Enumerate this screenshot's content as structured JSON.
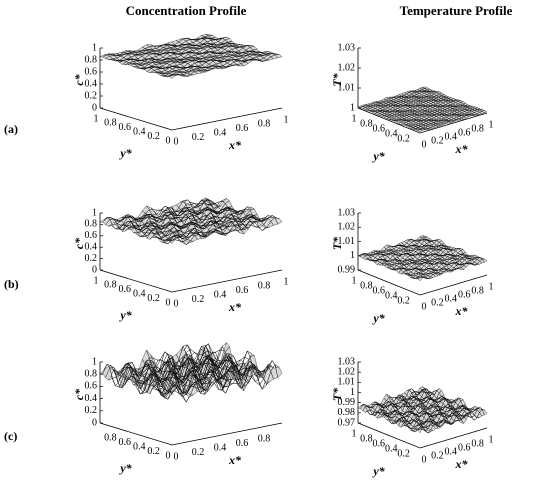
{
  "column_titles": [
    "Concentration Profile",
    "Temperature Profile"
  ],
  "rows": [
    {
      "label": "(a)",
      "panels": [
        {
          "zlabel": "c*",
          "ylabel": "y*",
          "xlabel": "x*",
          "zticks": [
            "0",
            "0.2",
            "0.4",
            "0.6",
            "0.8",
            "1"
          ],
          "yticks": [
            "0",
            "0.2",
            "0.4",
            "0.6",
            "0.8",
            "1"
          ],
          "xticks": [
            "0",
            "0.2",
            "0.4",
            "0.6",
            "0.8",
            "1"
          ]
        },
        {
          "zlabel": "T*",
          "ylabel": "y*",
          "xlabel": "x*",
          "zticks": [
            "1",
            "1.01",
            "1.02",
            "1.03"
          ],
          "yticks": [
            "0.2",
            "0.4",
            "0.6",
            "0.8",
            "1"
          ],
          "xticks": [
            "0",
            "0.2",
            "0.4",
            "0.6",
            "0.8",
            "1"
          ]
        }
      ]
    },
    {
      "label": "(b)",
      "panels": [
        {
          "zlabel": "c*",
          "ylabel": "y*",
          "xlabel": "x*",
          "zticks": [
            "0",
            "0.2",
            "0.4",
            "0.6",
            "0.8",
            "1"
          ],
          "yticks": [
            "0",
            "0.2",
            "0.4",
            "0.6",
            "0.8",
            "1"
          ],
          "xticks": [
            "0",
            "0.2",
            "0.4",
            "0.6",
            "0.8",
            "1"
          ]
        },
        {
          "zlabel": "T*",
          "ylabel": "y*",
          "xlabel": "x*",
          "zticks": [
            "0.99",
            "1",
            "1.01",
            "1.02",
            "1.03"
          ],
          "yticks": [
            "0.2",
            "0.4",
            "0.6",
            "0.8",
            "1"
          ],
          "xticks": [
            "0",
            "0.2",
            "0.4",
            "0.6",
            "0.8",
            "1"
          ]
        }
      ]
    },
    {
      "label": "(c)",
      "panels": [
        {
          "zlabel": "c*",
          "ylabel": "y*",
          "xlabel": "x*",
          "zticks": [
            "0",
            "0.2",
            "0.4",
            "0.6",
            "0.8",
            "1"
          ],
          "yticks": [
            "0",
            "0.2",
            "0.4",
            "0.6",
            "0.8"
          ],
          "xticks": [
            "0",
            "0.2",
            "0.4",
            "0.6",
            "0.8"
          ]
        },
        {
          "zlabel": "T*",
          "ylabel": "y*",
          "xlabel": "x*",
          "zticks": [
            "0.97",
            "0.98",
            "0.99",
            "1",
            "1.01",
            "1.02",
            "1.03"
          ],
          "yticks": [
            "0.2",
            "0.4",
            "0.6",
            "0.8",
            "1"
          ],
          "xticks": [
            "0",
            "0.2",
            "0.4",
            "0.6",
            "0.8",
            "1"
          ]
        }
      ]
    }
  ]
}
